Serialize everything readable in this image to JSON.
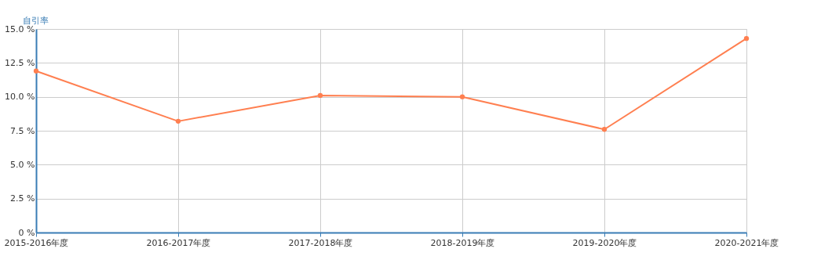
{
  "chart_data": {
    "type": "line",
    "ylabel": "自引率",
    "categories": [
      "2015-2016年度",
      "2016-2017年度",
      "2017-2018年度",
      "2018-2019年度",
      "2019-2020年度",
      "2020-2021年度"
    ],
    "series": [
      {
        "color": "#ff7f50",
        "values": [
          11.9,
          8.2,
          10.1,
          10.0,
          7.6,
          14.3
        ]
      }
    ],
    "ylim": [
      0,
      15
    ],
    "yticks": [
      {
        "value": 0,
        "label": "0 %"
      },
      {
        "value": 2.5,
        "label": "2.5 %"
      },
      {
        "value": 5,
        "label": "5.0 %"
      },
      {
        "value": 7.5,
        "label": "7.5 %"
      },
      {
        "value": 10,
        "label": "10.0 %"
      },
      {
        "value": 12.5,
        "label": "12.5 %"
      },
      {
        "value": 15,
        "label": "15.0 %"
      }
    ],
    "grid": true,
    "marker": "circle",
    "line_style": "solid"
  }
}
